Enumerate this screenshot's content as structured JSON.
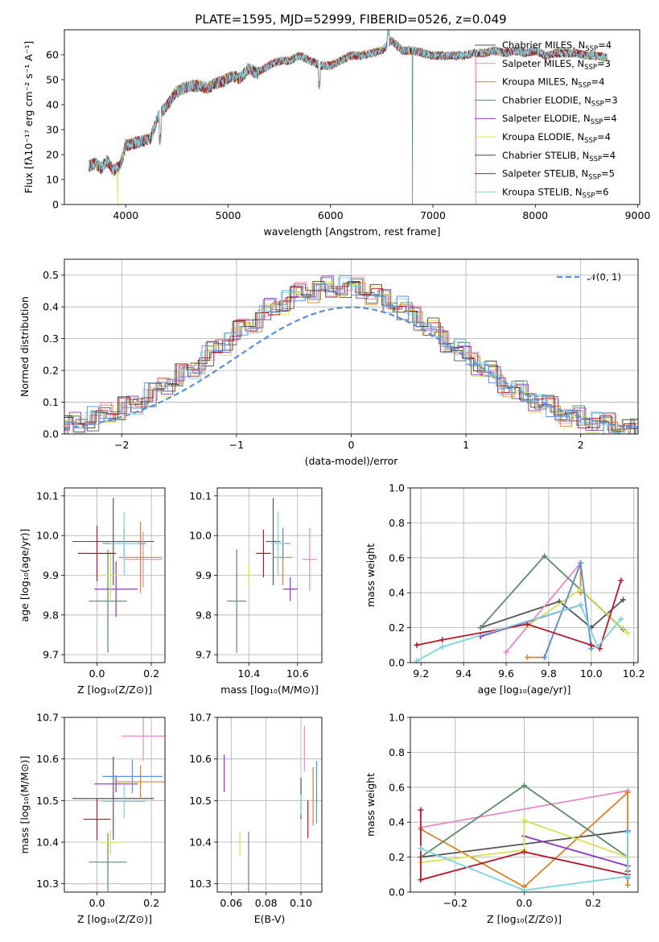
{
  "figure": {
    "title": "PLATE=1595, MJD=52999, FIBERID=0526, z=0.049"
  },
  "chart_data": [
    {
      "id": "spectrum",
      "type": "line",
      "xlabel": "wavelength [Angstrom, rest frame]",
      "ylabel": "Flux [fλ10⁻¹⁷ erg cm⁻² s⁻¹ A⁻¹]",
      "xlim": [
        3400,
        9020
      ],
      "ylim": [
        0,
        70
      ],
      "xticks": [
        4000,
        5000,
        6000,
        7000,
        8000,
        9000
      ],
      "yticks": [
        0,
        10,
        20,
        30,
        40,
        50,
        60
      ],
      "grid": false,
      "legend": "top-right",
      "x": [
        3640,
        3700,
        3760,
        3820,
        3880,
        3940,
        4000,
        4080,
        4160,
        4240,
        4320,
        4400,
        4480,
        4560,
        4640,
        4720,
        4800,
        4880,
        4960,
        5040,
        5120,
        5200,
        5280,
        5360,
        5440,
        5520,
        5600,
        5700,
        5800,
        5900,
        6000,
        6100,
        6200,
        6300,
        6400,
        6500,
        6600,
        6700,
        6800,
        6900,
        7000,
        7100,
        7200,
        7300,
        7400,
        7500,
        7600,
        7700,
        7800,
        7900,
        8000,
        8100,
        8200,
        8300,
        8400,
        8500,
        8600,
        8700
      ],
      "y": [
        16,
        17,
        15,
        18,
        14,
        16,
        24,
        25,
        26,
        27,
        36,
        40,
        45,
        47,
        48,
        48,
        47,
        49,
        50,
        52,
        51,
        55,
        53,
        55,
        57,
        58,
        58,
        60,
        58,
        56,
        56,
        58,
        60,
        60,
        61,
        62,
        66,
        62,
        62,
        61,
        60,
        60,
        60,
        60,
        61,
        61,
        62,
        61,
        62,
        61,
        62,
        60,
        61,
        61,
        61,
        60,
        60,
        59
      ],
      "series": [
        {
          "name": "Chabrier MILES, N",
          "sub": "SSP",
          "suffix": "=4",
          "color": "#555555"
        },
        {
          "name": "Salpeter MILES, N",
          "sub": "SSP",
          "suffix": "=3",
          "color": "#e78ac3"
        },
        {
          "name": "Kroupa MILES, N",
          "sub": "SSP",
          "suffix": "=4",
          "color": "#d9822b"
        },
        {
          "name": "Chabrier ELODIE, N",
          "sub": "SSP",
          "suffix": "=3",
          "color": "#5e8b6a"
        },
        {
          "name": "Salpeter ELODIE, N",
          "sub": "SSP",
          "suffix": "=4",
          "color": "#8e35c3"
        },
        {
          "name": "Kroupa ELODIE, N",
          "sub": "SSP",
          "suffix": "=4",
          "color": "#d4e157"
        },
        {
          "name": "Chabrier STELIB, N",
          "sub": "SSP",
          "suffix": "=4",
          "color": "#444444"
        },
        {
          "name": "Salpeter STELIB, N",
          "sub": "SSP",
          "suffix": "=5",
          "color": "#b2182b"
        },
        {
          "name": "Kroupa STELIB, N",
          "sub": "SSP",
          "suffix": "=6",
          "color": "#7fd3dc"
        }
      ]
    },
    {
      "id": "residuals",
      "type": "line",
      "xlabel": "(data-model)/error",
      "ylabel": "Normed distribution",
      "xlim": [
        -2.5,
        2.5
      ],
      "ylim": [
        0,
        0.55
      ],
      "xticks": [
        -2,
        -1,
        0,
        1,
        2
      ],
      "xticklabels": [
        "−2",
        "−1",
        "0",
        "1",
        "2"
      ],
      "yticks": [
        0.0,
        0.1,
        0.2,
        0.3,
        0.4,
        0.5
      ],
      "yticklabels": [
        "0.0",
        "0.1",
        "0.2",
        "0.3",
        "0.4",
        "0.5"
      ],
      "grid": true,
      "legend": "top-right",
      "legend_label": "𝒩(0, 1)",
      "model_color": "#5b8fd9"
    },
    {
      "id": "age-vs-Z",
      "type": "scatter",
      "xlabel": "Z [log₁₀(Z/Z⊙)]",
      "ylabel": "age  [log₁₀(age/yr)]",
      "xlim": [
        -0.12,
        0.25
      ],
      "ylim": [
        9.68,
        10.12
      ],
      "xticks": [
        0.0,
        0.2
      ],
      "xticklabels": [
        "0.0",
        "0.2"
      ],
      "yticks": [
        9.7,
        9.8,
        9.9,
        10.0,
        10.1
      ],
      "yticklabels": [
        "9.7",
        "9.8",
        "9.9",
        "10.0",
        "10.1"
      ],
      "grid": true,
      "points": [
        {
          "x": 0.06,
          "y": 9.985,
          "xerr": 0.15,
          "yerr": 0.11,
          "color": "#555555"
        },
        {
          "x": 0.17,
          "y": 9.94,
          "xerr": 0.07,
          "yerr": 0.07,
          "color": "#e78ac3"
        },
        {
          "x": 0.16,
          "y": 9.945,
          "xerr": 0.08,
          "yerr": 0.09,
          "color": "#d9822b"
        },
        {
          "x": 0.04,
          "y": 9.835,
          "xerr": 0.07,
          "yerr": 0.13,
          "color": "#5e8b6a"
        },
        {
          "x": 0.07,
          "y": 9.865,
          "xerr": 0.08,
          "yerr": 0.07,
          "color": "#8e35c3"
        },
        {
          "x": 0.05,
          "y": 9.9,
          "xerr": 0.04,
          "yerr": 0.06,
          "color": "#d4e157"
        },
        {
          "x": 0.1,
          "y": 9.98,
          "xerr": 0.08,
          "yerr": 0.04,
          "color": "#5b8fd9"
        },
        {
          "x": 0.0,
          "y": 9.955,
          "xerr": 0.07,
          "yerr": 0.07,
          "color": "#b2182b"
        },
        {
          "x": 0.1,
          "y": 9.98,
          "xerr": 0.05,
          "yerr": 0.08,
          "color": "#7fd3dc"
        }
      ]
    },
    {
      "id": "age-vs-mass",
      "type": "scatter",
      "xlabel": "mass [log₁₀(M/M⊙)]",
      "ylabel": "",
      "xlim": [
        10.27,
        10.7
      ],
      "ylim": [
        9.68,
        10.12
      ],
      "xticks": [
        10.4,
        10.6
      ],
      "xticklabels": [
        "10.4",
        "10.6"
      ],
      "yticks": [
        9.7,
        9.8,
        9.9,
        10.0,
        10.1
      ],
      "yticklabels": [
        "9.7",
        "9.8",
        "9.9",
        "10.0",
        "10.1"
      ],
      "grid": true,
      "points": [
        {
          "x": 10.5,
          "y": 9.985,
          "xerr": 0.03,
          "yerr": 0.11,
          "color": "#555555"
        },
        {
          "x": 10.65,
          "y": 9.94,
          "xerr": 0.03,
          "yerr": 0.08,
          "color": "#e78ac3"
        },
        {
          "x": 10.54,
          "y": 9.945,
          "xerr": 0.04,
          "yerr": 0.07,
          "color": "#d9822b"
        },
        {
          "x": 10.35,
          "y": 9.835,
          "xerr": 0.04,
          "yerr": 0.13,
          "color": "#5e8b6a"
        },
        {
          "x": 10.57,
          "y": 9.865,
          "xerr": 0.03,
          "yerr": 0.03,
          "color": "#8e35c3"
        },
        {
          "x": 10.4,
          "y": 9.9,
          "xerr": 0.02,
          "yerr": 0.03,
          "color": "#d4e157"
        },
        {
          "x": 10.54,
          "y": 9.98,
          "xerr": 0.03,
          "yerr": 0.04,
          "color": "#5b8fd9"
        },
        {
          "x": 10.46,
          "y": 9.955,
          "xerr": 0.03,
          "yerr": 0.06,
          "color": "#b2182b"
        },
        {
          "x": 10.52,
          "y": 9.98,
          "xerr": 0.03,
          "yerr": 0.08,
          "color": "#7fd3dc"
        }
      ]
    },
    {
      "id": "weight-vs-age",
      "type": "line",
      "xlabel": "age  [log₁₀(age/yr)]",
      "ylabel": "mass weight",
      "xlim": [
        9.15,
        10.22
      ],
      "ylim": [
        0,
        1
      ],
      "xticks": [
        9.2,
        9.4,
        9.6,
        9.8,
        10.0,
        10.2
      ],
      "xticklabels": [
        "9.2",
        "9.4",
        "9.6",
        "9.8",
        "10.0",
        "10.2"
      ],
      "yticks": [
        0.0,
        0.2,
        0.4,
        0.6,
        0.8,
        1.0
      ],
      "yticklabels": [
        "0.0",
        "0.2",
        "0.4",
        "0.6",
        "0.8",
        "1.0"
      ],
      "grid": true,
      "series": [
        {
          "color": "#555555",
          "x": [
            9.48,
            9.85,
            10.0,
            10.15
          ],
          "y": [
            0.2,
            0.35,
            0.2,
            0.36
          ]
        },
        {
          "color": "#e78ac3",
          "x": [
            9.6,
            9.95
          ],
          "y": [
            0.06,
            0.57
          ]
        },
        {
          "color": "#d9822b",
          "x": [
            9.7,
            9.78,
            9.95,
            9.95
          ],
          "y": [
            0.03,
            0.03,
            0.57,
            0.4
          ]
        },
        {
          "color": "#5e8b6a",
          "x": [
            9.48,
            9.78,
            10.15
          ],
          "y": [
            0.2,
            0.61,
            0.19
          ]
        },
        {
          "color": "#8e35c3",
          "x": [
            9.48,
            9.95
          ],
          "y": [
            0.15,
            0.33
          ]
        },
        {
          "color": "#d4e157",
          "x": [
            9.7,
            9.95,
            10.17
          ],
          "y": [
            0.21,
            0.42,
            0.17
          ]
        },
        {
          "color": "#5b8fd9",
          "x": [
            9.78,
            9.95,
            10.0
          ],
          "y": [
            0.03,
            0.57,
            0.08
          ]
        },
        {
          "color": "#b2182b",
          "x": [
            9.18,
            9.3,
            9.7,
            10.0,
            10.04,
            10.14
          ],
          "y": [
            0.1,
            0.13,
            0.22,
            0.1,
            0.08,
            0.47
          ]
        },
        {
          "color": "#7fd3dc",
          "x": [
            9.18,
            9.3,
            9.95,
            10.03,
            10.14
          ],
          "y": [
            0.01,
            0.09,
            0.33,
            0.09,
            0.25
          ]
        }
      ]
    },
    {
      "id": "mass-vs-Z",
      "type": "scatter",
      "xlabel": "Z [log₁₀(Z/Z⊙)]",
      "ylabel": "mass [log₁₀(M/M⊙)]",
      "xlim": [
        -0.12,
        0.25
      ],
      "ylim": [
        10.28,
        10.7
      ],
      "xticks": [
        0.0,
        0.2
      ],
      "xticklabels": [
        "0.0",
        "0.2"
      ],
      "yticks": [
        10.3,
        10.4,
        10.5,
        10.6,
        10.7
      ],
      "yticklabels": [
        "10.3",
        "10.4",
        "10.5",
        "10.6",
        "10.7"
      ],
      "grid": true,
      "points": [
        {
          "x": 0.06,
          "y": 10.505,
          "xerr": 0.15,
          "yerr": 0.1,
          "color": "#555555"
        },
        {
          "x": 0.17,
          "y": 10.655,
          "xerr": 0.08,
          "yerr": 0.06,
          "color": "#e78ac3"
        },
        {
          "x": 0.16,
          "y": 10.545,
          "xerr": 0.09,
          "yerr": 0.04,
          "color": "#d9822b"
        },
        {
          "x": 0.04,
          "y": 10.352,
          "xerr": 0.07,
          "yerr": 0.07,
          "color": "#5e8b6a"
        },
        {
          "x": 0.07,
          "y": 10.54,
          "xerr": 0.08,
          "yerr": 0.02,
          "color": "#8e35c3"
        },
        {
          "x": 0.05,
          "y": 10.4,
          "xerr": 0.04,
          "yerr": 0.03,
          "color": "#d4e157"
        },
        {
          "x": 0.13,
          "y": 10.558,
          "xerr": 0.11,
          "yerr": 0.04,
          "color": "#5b8fd9"
        },
        {
          "x": 0.0,
          "y": 10.455,
          "xerr": 0.05,
          "yerr": 0.05,
          "color": "#b2182b"
        },
        {
          "x": 0.1,
          "y": 10.498,
          "xerr": 0.08,
          "yerr": 0.04,
          "color": "#7fd3dc"
        }
      ]
    },
    {
      "id": "mass-vs-ebv",
      "type": "scatter",
      "xlabel": "E(B-V)",
      "ylabel": "",
      "xlim": [
        0.052,
        0.112
      ],
      "ylim": [
        10.28,
        10.7
      ],
      "xticks": [
        0.06,
        0.08,
        0.1
      ],
      "xticklabels": [
        "0.06",
        "0.08",
        "0.10"
      ],
      "yticks": [
        10.3,
        10.4,
        10.5,
        10.6,
        10.7
      ],
      "yticklabels": [
        "10.3",
        "10.4",
        "10.5",
        "10.6",
        "10.7"
      ],
      "grid": true,
      "points": [
        {
          "x": 0.1,
          "y": 10.505,
          "xerr": 0,
          "yerr": 0.05,
          "color": "#555555"
        },
        {
          "x": 0.102,
          "y": 10.625,
          "xerr": 0,
          "yerr": 0.055,
          "color": "#e78ac3"
        },
        {
          "x": 0.107,
          "y": 10.51,
          "xerr": 0,
          "yerr": 0.07,
          "color": "#d9822b"
        },
        {
          "x": 0.07,
          "y": 10.35,
          "xerr": 0,
          "yerr": 0.075,
          "color": "#5e8b6a"
        },
        {
          "x": 0.056,
          "y": 10.565,
          "xerr": 0,
          "yerr": 0.045,
          "color": "#8e35c3"
        },
        {
          "x": 0.065,
          "y": 10.395,
          "xerr": 0,
          "yerr": 0.03,
          "color": "#d4e157"
        },
        {
          "x": 0.109,
          "y": 10.52,
          "xerr": 0,
          "yerr": 0.075,
          "color": "#5b8fd9"
        },
        {
          "x": 0.104,
          "y": 10.455,
          "xerr": 0,
          "yerr": 0.045,
          "color": "#b2182b"
        },
        {
          "x": 0.1,
          "y": 10.49,
          "xerr": 0,
          "yerr": 0.025,
          "color": "#7fd3dc"
        }
      ]
    },
    {
      "id": "weight-vs-Z",
      "type": "line",
      "xlabel": "Z [log₁₀(Z/Z⊙)]",
      "ylabel": "mass weight",
      "xlim": [
        -0.33,
        0.33
      ],
      "ylim": [
        0,
        1
      ],
      "xticks": [
        -0.2,
        0.0,
        0.2
      ],
      "xticklabels": [
        "−0.2",
        "0.0",
        "0.2"
      ],
      "yticks": [
        0.0,
        0.2,
        0.4,
        0.6,
        0.8,
        1.0
      ],
      "yticklabels": [
        "0.0",
        "0.2",
        "0.4",
        "0.6",
        "0.8",
        "1.0"
      ],
      "grid": true,
      "series": [
        {
          "color": "#555555",
          "x": [
            -0.3,
            0.3
          ],
          "y": [
            0.2,
            0.35
          ]
        },
        {
          "color": "#e78ac3",
          "x": [
            -0.3,
            0.3
          ],
          "y": [
            0.37,
            0.58
          ]
        },
        {
          "color": "#d9822b",
          "x": [
            -0.3,
            0.0,
            0.3,
            0.3
          ],
          "y": [
            0.36,
            0.03,
            0.57,
            0.04
          ]
        },
        {
          "color": "#5e8b6a",
          "x": [
            -0.3,
            0.0,
            0.3
          ],
          "y": [
            0.2,
            0.61,
            0.2
          ]
        },
        {
          "color": "#8e35c3",
          "x": [
            0.0,
            0.3
          ],
          "y": [
            0.32,
            0.15
          ]
        },
        {
          "color": "#d4e157",
          "x": [
            -0.3,
            0.0,
            0.0,
            0.3
          ],
          "y": [
            0.17,
            0.24,
            0.41,
            0.2
          ]
        },
        {
          "color": "#5b8fd9",
          "x": [
            0.3,
            0.3
          ],
          "y": [
            0.08,
            0.35
          ]
        },
        {
          "color": "#b2182b",
          "x": [
            -0.3,
            -0.3,
            0.0,
            0.3,
            0.3
          ],
          "y": [
            0.47,
            0.07,
            0.23,
            0.1,
            0.12
          ]
        },
        {
          "color": "#7fd3dc",
          "x": [
            -0.3,
            0.0,
            0.3,
            0.3
          ],
          "y": [
            0.25,
            0.01,
            0.09,
            0.34
          ]
        }
      ]
    }
  ]
}
